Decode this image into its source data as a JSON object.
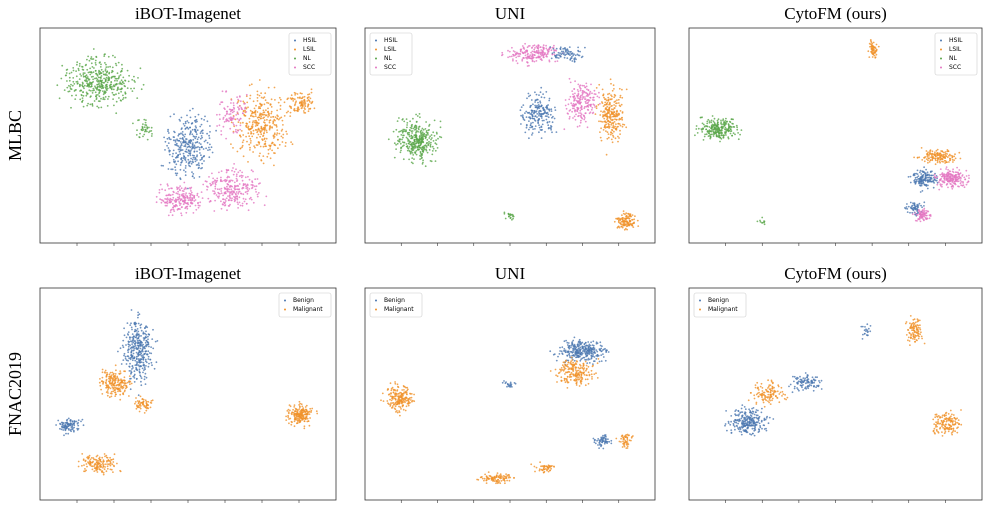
{
  "rows": [
    {
      "label": "MLBC",
      "legend": [
        {
          "name": "HSIL",
          "color": "#4c78b0"
        },
        {
          "name": "LSIL",
          "color": "#f0922b"
        },
        {
          "name": "NL",
          "color": "#5aa64a"
        },
        {
          "name": "SCC",
          "color": "#e377c2"
        }
      ],
      "panels": [
        {
          "title": "iBOT-Imagenet",
          "legend_loc": "upper right"
        },
        {
          "title": "UNI",
          "legend_loc": "upper left"
        },
        {
          "title": "CytoFM (ours)",
          "legend_loc": "upper right"
        }
      ]
    },
    {
      "label": "FNAC2019",
      "legend": [
        {
          "name": "Benign",
          "color": "#4c78b0"
        },
        {
          "name": "Malignant",
          "color": "#f0922b"
        }
      ],
      "panels": [
        {
          "title": "iBOT-Imagenet",
          "legend_loc": "upper right"
        },
        {
          "title": "UNI",
          "legend_loc": "upper left"
        },
        {
          "title": "CytoFM (ours)",
          "legend_loc": "upper left"
        }
      ]
    }
  ]
}
